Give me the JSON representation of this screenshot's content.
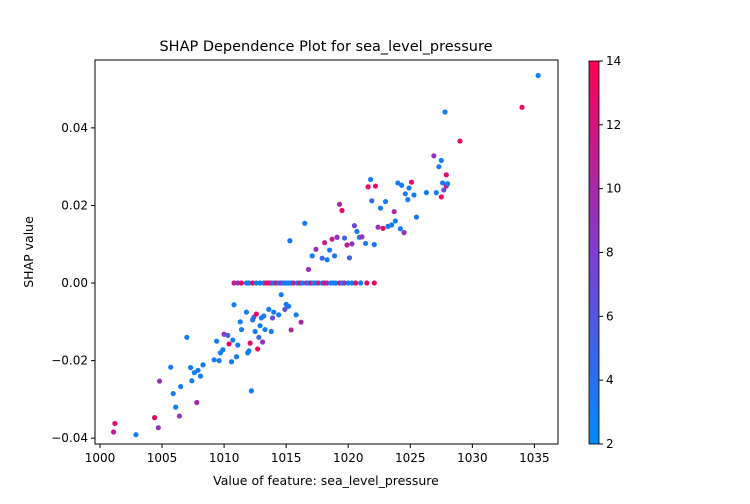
{
  "chart_data": {
    "type": "scatter",
    "title": "SHAP Dependence Plot for sea_level_pressure",
    "xlabel": "Value of feature: sea_level_pressure",
    "ylabel": "SHAP value",
    "xlim": [
      999.6,
      1036.9
    ],
    "ylim": [
      -0.0415,
      0.0575
    ],
    "xticks": [
      1000,
      1005,
      1010,
      1015,
      1020,
      1025,
      1030,
      1035
    ],
    "xtick_labels": [
      "1000",
      "1005",
      "1010",
      "1015",
      "1020",
      "1025",
      "1030",
      "1035"
    ],
    "yticks": [
      -0.04,
      -0.02,
      0.0,
      0.02,
      0.04
    ],
    "ytick_labels": [
      "−0.04",
      "−0.02",
      "0.00",
      "0.02",
      "0.04"
    ],
    "colorbar": {
      "range": [
        2,
        14
      ],
      "ticks": [
        2,
        4,
        6,
        8,
        10,
        12,
        14
      ],
      "tick_labels": [
        "2",
        "4",
        "6",
        "8",
        "10",
        "12",
        "14"
      ],
      "colormap_stops": [
        "#008afb",
        "#7c3ed0",
        "#ff0052"
      ]
    },
    "grid": false,
    "points": [
      [
        1001.2,
        -0.0362,
        13
      ],
      [
        1001.1,
        -0.0384,
        11
      ],
      [
        1002.9,
        -0.0391,
        3
      ],
      [
        1004.4,
        -0.0347,
        13
      ],
      [
        1004.7,
        -0.0373,
        9
      ],
      [
        1004.8,
        -0.0253,
        9
      ],
      [
        1005.7,
        -0.0217,
        3
      ],
      [
        1005.9,
        -0.0285,
        3
      ],
      [
        1006.1,
        -0.032,
        3
      ],
      [
        1006.4,
        -0.0343,
        9
      ],
      [
        1006.5,
        -0.0267,
        3
      ],
      [
        1007.0,
        -0.014,
        3
      ],
      [
        1007.3,
        -0.0218,
        3
      ],
      [
        1007.4,
        -0.0252,
        3
      ],
      [
        1007.6,
        -0.0231,
        3
      ],
      [
        1007.8,
        -0.0308,
        10
      ],
      [
        1007.9,
        -0.0225,
        3
      ],
      [
        1008.1,
        -0.024,
        3
      ],
      [
        1008.3,
        -0.0211,
        3
      ],
      [
        1009.2,
        -0.0198,
        3
      ],
      [
        1009.4,
        -0.015,
        3
      ],
      [
        1009.6,
        -0.02,
        3
      ],
      [
        1009.7,
        -0.018,
        3
      ],
      [
        1009.9,
        -0.0172,
        3
      ],
      [
        1010.0,
        -0.0132,
        9
      ],
      [
        1010.3,
        -0.0135,
        5
      ],
      [
        1010.4,
        -0.0157,
        13
      ],
      [
        1010.6,
        -0.0203,
        3
      ],
      [
        1010.7,
        -0.0147,
        3
      ],
      [
        1010.8,
        -0.0056,
        3
      ],
      [
        1011.0,
        -0.019,
        3
      ],
      [
        1011.1,
        -0.016,
        3
      ],
      [
        1011.3,
        -0.01,
        3
      ],
      [
        1011.4,
        -0.012,
        3
      ],
      [
        1011.8,
        -0.0075,
        3
      ],
      [
        1011.9,
        -0.018,
        3
      ],
      [
        1012.0,
        -0.0175,
        3
      ],
      [
        1012.1,
        -0.0155,
        13
      ],
      [
        1012.2,
        -0.0278,
        3
      ],
      [
        1012.3,
        -0.0095,
        3
      ],
      [
        1012.4,
        -0.0088,
        5
      ],
      [
        1012.5,
        -0.0125,
        3
      ],
      [
        1012.6,
        -0.008,
        13
      ],
      [
        1012.7,
        -0.017,
        13
      ],
      [
        1012.8,
        -0.014,
        5
      ],
      [
        1012.9,
        -0.011,
        3
      ],
      [
        1013.0,
        -0.009,
        3
      ],
      [
        1013.1,
        -0.0152,
        9
      ],
      [
        1013.2,
        -0.0085,
        3
      ],
      [
        1013.3,
        -0.012,
        3
      ],
      [
        1013.6,
        -0.0068,
        3
      ],
      [
        1013.8,
        -0.0125,
        3
      ],
      [
        1013.9,
        -0.009,
        7
      ],
      [
        1014.0,
        -0.0075,
        3
      ],
      [
        1014.4,
        -0.0082,
        3
      ],
      [
        1014.6,
        -0.003,
        3
      ],
      [
        1014.9,
        -0.0068,
        7
      ],
      [
        1015.0,
        -0.0055,
        3
      ],
      [
        1015.2,
        -0.006,
        3
      ],
      [
        1015.4,
        -0.0121,
        10
      ],
      [
        1015.8,
        -0.0082,
        3
      ],
      [
        1016.2,
        -0.0101,
        10
      ],
      [
        1015.3,
        0.0109,
        3
      ],
      [
        1016.5,
        0.0154,
        3
      ],
      [
        1016.8,
        0.0035,
        9
      ],
      [
        1017.1,
        0.007,
        3
      ],
      [
        1017.4,
        0.0087,
        9
      ],
      [
        1017.9,
        0.0064,
        5
      ],
      [
        1018.1,
        0.0104,
        11
      ],
      [
        1018.3,
        0.006,
        3
      ],
      [
        1018.5,
        0.0085,
        3
      ],
      [
        1018.7,
        0.0113,
        11
      ],
      [
        1018.9,
        0.007,
        3
      ],
      [
        1019.1,
        0.0118,
        9
      ],
      [
        1019.3,
        0.0203,
        10
      ],
      [
        1019.5,
        0.0187,
        13
      ],
      [
        1019.7,
        0.0116,
        5
      ],
      [
        1019.9,
        0.0098,
        11
      ],
      [
        1020.1,
        0.0065,
        5
      ],
      [
        1020.3,
        0.0101,
        9
      ],
      [
        1020.5,
        0.0148,
        7
      ],
      [
        1020.7,
        0.0133,
        3
      ],
      [
        1020.9,
        0.0118,
        3
      ],
      [
        1021.1,
        0.0119,
        9
      ],
      [
        1021.4,
        0.0102,
        3
      ],
      [
        1021.6,
        0.0248,
        13
      ],
      [
        1021.8,
        0.0267,
        3
      ],
      [
        1021.9,
        0.0212,
        5
      ],
      [
        1022.1,
        0.0099,
        3
      ],
      [
        1022.2,
        0.025,
        13
      ],
      [
        1022.4,
        0.0144,
        9
      ],
      [
        1022.6,
        0.0193,
        3
      ],
      [
        1022.8,
        0.0141,
        13
      ],
      [
        1023.0,
        0.021,
        3
      ],
      [
        1023.2,
        0.0146,
        3
      ],
      [
        1023.5,
        0.015,
        3
      ],
      [
        1023.7,
        0.0184,
        10
      ],
      [
        1023.8,
        0.016,
        3
      ],
      [
        1024.0,
        0.0258,
        3
      ],
      [
        1024.2,
        0.014,
        3
      ],
      [
        1024.3,
        0.0252,
        3
      ],
      [
        1024.5,
        0.013,
        9
      ],
      [
        1024.6,
        0.023,
        3
      ],
      [
        1024.8,
        0.0215,
        3
      ],
      [
        1024.9,
        0.0245,
        3
      ],
      [
        1025.1,
        0.026,
        13
      ],
      [
        1025.3,
        0.0227,
        3
      ],
      [
        1025.5,
        0.017,
        3
      ],
      [
        1026.3,
        0.0233,
        3
      ],
      [
        1026.9,
        0.0328,
        9
      ],
      [
        1027.1,
        0.0233,
        3
      ],
      [
        1027.3,
        0.03,
        3
      ],
      [
        1027.5,
        0.0222,
        13
      ],
      [
        1027.5,
        0.0316,
        3
      ],
      [
        1027.6,
        0.0258,
        3
      ],
      [
        1027.7,
        0.024,
        7
      ],
      [
        1027.8,
        0.0441,
        3
      ],
      [
        1027.9,
        0.0279,
        13
      ],
      [
        1027.9,
        0.025,
        11
      ],
      [
        1028.0,
        0.0256,
        3
      ],
      [
        1029.0,
        0.0366,
        13
      ],
      [
        1034.0,
        0.0453,
        13
      ],
      [
        1035.3,
        0.0535,
        3
      ],
      [
        1010.8,
        0.0,
        11
      ],
      [
        1011.1,
        0.0,
        9
      ],
      [
        1011.4,
        0.0,
        13
      ],
      [
        1011.8,
        0.0,
        3
      ],
      [
        1012.0,
        0.0,
        3
      ],
      [
        1012.3,
        0.0,
        13
      ],
      [
        1012.6,
        0.0,
        3
      ],
      [
        1012.9,
        0.0,
        3
      ],
      [
        1013.2,
        0.0,
        3
      ],
      [
        1013.4,
        0.0,
        13
      ],
      [
        1013.6,
        0.0,
        13
      ],
      [
        1013.8,
        0.0,
        9
      ],
      [
        1014.0,
        0.0,
        3
      ],
      [
        1014.2,
        0.0,
        13
      ],
      [
        1014.4,
        0.0,
        3
      ],
      [
        1014.6,
        0.0,
        9
      ],
      [
        1014.8,
        0.0,
        3
      ],
      [
        1015.0,
        0.0,
        3
      ],
      [
        1015.2,
        0.0,
        3
      ],
      [
        1015.4,
        0.0,
        3
      ],
      [
        1015.6,
        0.0,
        11
      ],
      [
        1015.9,
        0.0,
        3
      ],
      [
        1016.1,
        0.0,
        13
      ],
      [
        1016.3,
        0.0,
        3
      ],
      [
        1016.6,
        0.0,
        9
      ],
      [
        1016.8,
        0.0,
        3
      ],
      [
        1017.0,
        0.0,
        13
      ],
      [
        1017.2,
        0.0,
        3
      ],
      [
        1017.4,
        0.0,
        3
      ],
      [
        1017.6,
        0.0,
        11
      ],
      [
        1017.9,
        0.0,
        3
      ],
      [
        1018.1,
        0.0,
        13
      ],
      [
        1018.3,
        0.0,
        9
      ],
      [
        1018.6,
        0.0,
        3
      ],
      [
        1018.8,
        0.0,
        3
      ],
      [
        1019.0,
        0.0,
        3
      ],
      [
        1019.3,
        0.0,
        13
      ],
      [
        1019.5,
        0.0,
        3
      ],
      [
        1019.7,
        0.0,
        9
      ],
      [
        1020.0,
        0.0,
        3
      ],
      [
        1020.3,
        0.0,
        3
      ],
      [
        1020.6,
        0.0,
        13
      ],
      [
        1021.0,
        0.0,
        3
      ],
      [
        1021.5,
        0.0,
        13
      ],
      [
        1022.1,
        0.0,
        13
      ]
    ]
  }
}
